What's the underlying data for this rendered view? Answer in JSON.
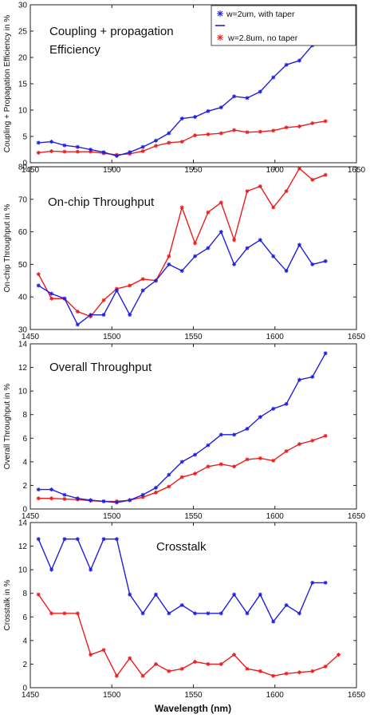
{
  "legend": {
    "taper": "w=2um, with taper",
    "notaper": "w=2.8um,  no taper"
  },
  "xlabel": "Wavelength (nm)",
  "colors": {
    "taper": "#1f1fe0",
    "notaper": "#ee1c1c",
    "axis": "#222222"
  },
  "chart_data": [
    {
      "type": "line",
      "title": "Coupling + propagation Efficiency",
      "ylabel": "Coupling + Propagation Efficiency in %",
      "xlim": [
        1450,
        1650
      ],
      "ylim": [
        0,
        30
      ],
      "xticks": [
        1450,
        1500,
        1550,
        1600,
        1650
      ],
      "yticks": [
        0,
        5,
        10,
        15,
        20,
        25,
        30
      ],
      "series": [
        {
          "name": "w=2um, with taper",
          "key": "taper",
          "x": [
            1455,
            1463,
            1471,
            1479,
            1487,
            1495,
            1503,
            1511,
            1519,
            1527,
            1535,
            1543,
            1551,
            1559,
            1567,
            1575,
            1583,
            1591,
            1599,
            1607,
            1615,
            1623,
            1631,
            1639,
            1647
          ],
          "y": [
            3.8,
            4.0,
            3.3,
            3.0,
            2.5,
            2.0,
            1.3,
            2.0,
            3.0,
            4.2,
            5.6,
            8.4,
            8.7,
            9.8,
            10.5,
            12.6,
            12.3,
            13.5,
            16.2,
            18.6,
            19.4,
            22.3,
            25.7,
            null,
            null
          ]
        },
        {
          "name": "w=2.8um,  no taper",
          "key": "notaper",
          "x": [
            1455,
            1463,
            1471,
            1479,
            1487,
            1495,
            1503,
            1511,
            1519,
            1527,
            1535,
            1543,
            1551,
            1559,
            1567,
            1575,
            1583,
            1591,
            1599,
            1607,
            1615,
            1623,
            1631,
            1639,
            1647
          ],
          "y": [
            1.9,
            2.2,
            2.1,
            2.1,
            2.1,
            1.8,
            1.5,
            1.7,
            2.2,
            3.2,
            3.8,
            4.0,
            5.2,
            5.4,
            5.6,
            6.2,
            5.8,
            5.9,
            6.1,
            6.7,
            6.9,
            7.5,
            7.9,
            null,
            null
          ]
        }
      ]
    },
    {
      "type": "line",
      "title": "On-chip Throughput",
      "ylabel": "On-chip Throughput in %",
      "xlim": [
        1450,
        1650
      ],
      "ylim": [
        30,
        80
      ],
      "xticks": [
        1450,
        1500,
        1550,
        1600,
        1650
      ],
      "yticks": [
        30,
        40,
        50,
        60,
        70,
        80
      ],
      "series": [
        {
          "name": "w=2um, with taper",
          "key": "taper",
          "x": [
            1455,
            1463,
            1471,
            1479,
            1487,
            1495,
            1503,
            1511,
            1519,
            1527,
            1535,
            1543,
            1551,
            1559,
            1567,
            1575,
            1583,
            1591,
            1599,
            1607,
            1615,
            1623,
            1631,
            1639
          ],
          "y": [
            43.5,
            41,
            39.5,
            31.5,
            34.5,
            34.5,
            42,
            34.5,
            42,
            45,
            50,
            48,
            52.5,
            55,
            60,
            50,
            55,
            57.5,
            52.5,
            48,
            56,
            50,
            51,
            null
          ]
        },
        {
          "name": "w=2.8um,  no taper",
          "key": "notaper",
          "x": [
            1455,
            1463,
            1471,
            1479,
            1487,
            1495,
            1503,
            1511,
            1519,
            1527,
            1535,
            1543,
            1551,
            1559,
            1567,
            1575,
            1583,
            1591,
            1599,
            1607,
            1615,
            1623,
            1631,
            1639
          ],
          "y": [
            47,
            39.5,
            39.5,
            35.5,
            34,
            39,
            42.5,
            43.5,
            45.5,
            45,
            52.5,
            67.5,
            56.5,
            66,
            69,
            57.5,
            72.5,
            74,
            67.5,
            72.5,
            79.5,
            76,
            77.5,
            null
          ]
        }
      ]
    },
    {
      "type": "line",
      "title": "Overall Throughput",
      "ylabel": "Overall Throughput in %",
      "xlim": [
        1450,
        1650
      ],
      "ylim": [
        0,
        14
      ],
      "xticks": [
        1450,
        1500,
        1550,
        1600,
        1650
      ],
      "yticks": [
        0,
        2,
        4,
        6,
        8,
        10,
        12,
        14
      ],
      "series": [
        {
          "name": "w=2um, with taper",
          "key": "taper",
          "x": [
            1455,
            1463,
            1471,
            1479,
            1487,
            1495,
            1503,
            1511,
            1519,
            1527,
            1535,
            1543,
            1551,
            1559,
            1567,
            1575,
            1583,
            1591,
            1599,
            1607,
            1615,
            1623,
            1631,
            1639,
            1647
          ],
          "y": [
            1.65,
            1.65,
            1.2,
            0.9,
            0.75,
            0.65,
            0.55,
            0.75,
            1.2,
            1.8,
            2.9,
            4.0,
            4.6,
            5.4,
            6.3,
            6.3,
            6.8,
            7.8,
            8.5,
            8.9,
            10.95,
            11.2,
            13.2,
            null,
            null
          ]
        },
        {
          "name": "w=2.8um,  no taper",
          "key": "notaper",
          "x": [
            1455,
            1463,
            1471,
            1479,
            1487,
            1495,
            1503,
            1511,
            1519,
            1527,
            1535,
            1543,
            1551,
            1559,
            1567,
            1575,
            1583,
            1591,
            1599,
            1607,
            1615,
            1623,
            1631,
            1639,
            1647
          ],
          "y": [
            0.9,
            0.9,
            0.85,
            0.8,
            0.7,
            0.65,
            0.65,
            0.75,
            1.0,
            1.4,
            1.9,
            2.7,
            3.0,
            3.6,
            3.8,
            3.6,
            4.2,
            4.3,
            4.1,
            4.9,
            5.5,
            5.8,
            6.2,
            null,
            null
          ]
        }
      ]
    },
    {
      "type": "line",
      "title": "Crosstalk",
      "ylabel": "Crosstalk in %",
      "xlabel": "Wavelength (nm)",
      "xlim": [
        1450,
        1650
      ],
      "ylim": [
        0,
        14
      ],
      "xticks": [
        1450,
        1500,
        1550,
        1600,
        1650
      ],
      "yticks": [
        0,
        2,
        4,
        6,
        8,
        10,
        12,
        14
      ],
      "series": [
        {
          "name": "w=2um, with taper",
          "key": "taper",
          "x": [
            1455,
            1463,
            1471,
            1479,
            1487,
            1495,
            1503,
            1511,
            1519,
            1527,
            1535,
            1543,
            1551,
            1559,
            1567,
            1575,
            1583,
            1591,
            1599,
            1607,
            1615,
            1623,
            1631,
            1639,
            1647
          ],
          "y": [
            12.6,
            10.0,
            12.6,
            12.6,
            10.0,
            12.6,
            12.6,
            7.9,
            6.3,
            7.9,
            6.3,
            7.0,
            6.3,
            6.3,
            6.3,
            7.9,
            6.3,
            7.9,
            5.6,
            7.0,
            6.3,
            8.9,
            8.9,
            null,
            null
          ]
        },
        {
          "name": "w=2.8um,  no taper",
          "key": "notaper",
          "x": [
            1455,
            1463,
            1471,
            1479,
            1487,
            1495,
            1503,
            1511,
            1519,
            1527,
            1535,
            1543,
            1551,
            1559,
            1567,
            1575,
            1583,
            1591,
            1599,
            1607,
            1615,
            1623,
            1631,
            1639,
            1647
          ],
          "y": [
            7.9,
            6.3,
            6.3,
            6.3,
            2.8,
            3.2,
            1.0,
            2.5,
            1.0,
            2.0,
            1.4,
            1.6,
            2.2,
            2.0,
            2.0,
            2.8,
            1.6,
            1.4,
            1.0,
            1.2,
            1.3,
            1.4,
            1.8,
            2.8,
            null
          ]
        }
      ]
    }
  ]
}
